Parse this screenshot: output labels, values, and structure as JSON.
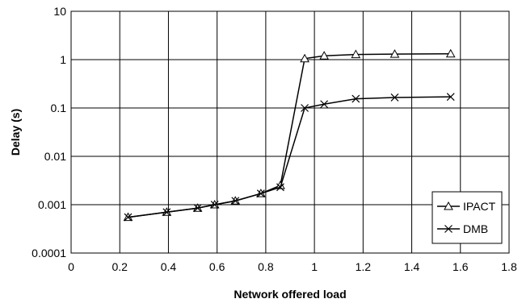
{
  "chart_data": {
    "type": "line",
    "title": "",
    "xlabel": "Network offered load",
    "ylabel": "Delay (s)",
    "xlim": [
      0,
      1.8
    ],
    "ylim": [
      0.0001,
      10
    ],
    "yscale": "log",
    "grid": true,
    "legend_position": "bottom-right",
    "x_ticks": [
      "0",
      "0.2",
      "0.4",
      "0.6",
      "0.8",
      "1",
      "1.2",
      "1.4",
      "1.6",
      "1.8"
    ],
    "y_ticks": [
      "10",
      "1",
      "0.1",
      "0.01",
      "0.001",
      "0.0001"
    ],
    "series": [
      {
        "name": "IPACT",
        "marker": "triangle",
        "color": "#000000",
        "x": [
          0.234,
          0.393,
          0.52,
          0.59,
          0.675,
          0.78,
          0.86,
          0.96,
          1.04,
          1.17,
          1.33,
          1.56
        ],
        "y": [
          0.00055,
          0.0007,
          0.00085,
          0.001,
          0.0012,
          0.0017,
          0.0025,
          1.05,
          1.2,
          1.28,
          1.3,
          1.32
        ]
      },
      {
        "name": "DMB",
        "marker": "x",
        "color": "#000000",
        "x": [
          0.234,
          0.393,
          0.52,
          0.59,
          0.675,
          0.78,
          0.86,
          0.96,
          1.04,
          1.17,
          1.33,
          1.56
        ],
        "y": [
          0.00055,
          0.0007,
          0.00085,
          0.001,
          0.0012,
          0.0017,
          0.0023,
          0.1,
          0.12,
          0.155,
          0.165,
          0.17
        ]
      }
    ]
  }
}
